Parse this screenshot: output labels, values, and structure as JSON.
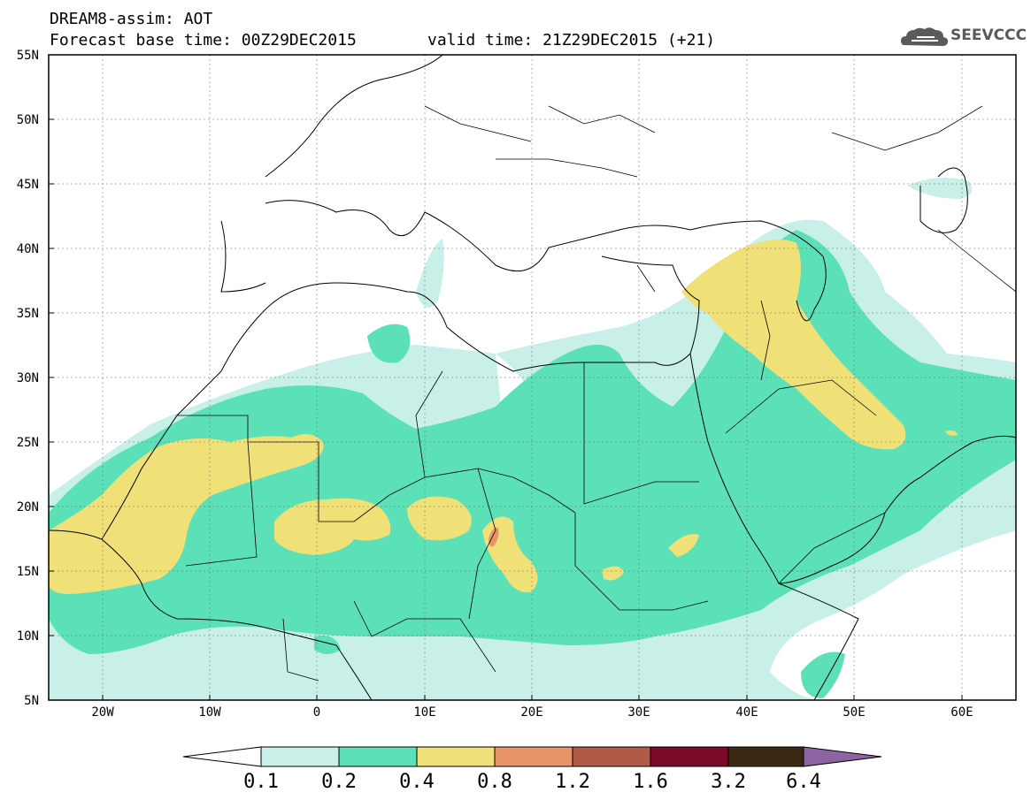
{
  "header": {
    "title_line1": "DREAM8-assim: AOT",
    "title_line2_left": "Forecast base time: 00Z29DEC2015",
    "title_line2_right": "valid time: 21Z29DEC2015 (+21)",
    "logo_text": "SEEVCCC",
    "logo_icon": "cloud-icon"
  },
  "map": {
    "lon_range": [
      -25,
      65
    ],
    "lat_range": [
      5,
      55
    ],
    "lat_labels": [
      "55N",
      "50N",
      "45N",
      "40N",
      "35N",
      "30N",
      "25N",
      "20N",
      "15N",
      "10N",
      "5N"
    ],
    "lon_labels": [
      "20W",
      "10W",
      "0",
      "10E",
      "20E",
      "30E",
      "40E",
      "50E",
      "60E"
    ],
    "background": "#ffffff",
    "border_color": "#000000"
  },
  "colorbar": {
    "levels": [
      "0.1",
      "0.2",
      "0.4",
      "0.8",
      "1.2",
      "1.6",
      "3.2",
      "6.4"
    ],
    "colors": [
      "#c8f0e8",
      "#5ce0b8",
      "#f0e078",
      "#e89468",
      "#b05a48",
      "#7a0a28",
      "#3c2814",
      "#8c64a4"
    ],
    "under_color": "#ffffff"
  }
}
